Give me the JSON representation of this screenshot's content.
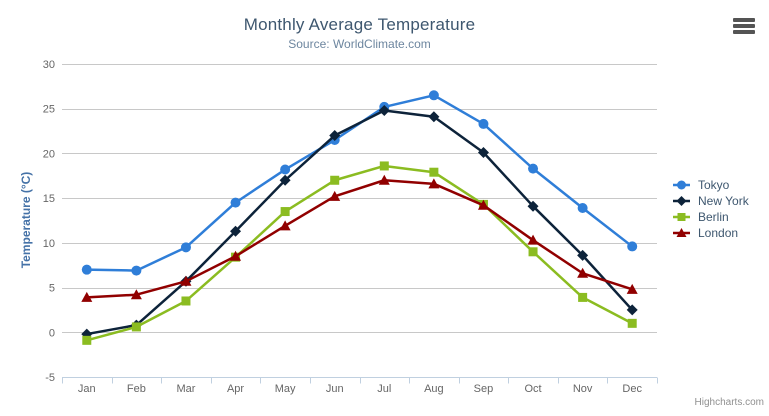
{
  "chart": {
    "title": "Monthly Average Temperature",
    "subtitle": "Source: WorldClimate.com",
    "y_axis_title": "Temperature (°C)",
    "credits": "Highcharts.com",
    "export_menu_icon": "hamburger-icon"
  },
  "style": {
    "grid_color": "#C8C8C8",
    "axis_line_color": "#C0D0E0",
    "axis_label_color": "#666666",
    "legend_text_color": "#3E576F",
    "title_color": "#3E576F",
    "subtitle_color": "#6D869F",
    "y_axis_title_color": "#4572A7",
    "background_color": "#FFFFFF"
  },
  "chart_data": {
    "type": "line",
    "title": "Monthly Average Temperature",
    "subtitle": "Source: WorldClimate.com",
    "xlabel": "",
    "ylabel": "Temperature (°C)",
    "ylim": [
      -5,
      30
    ],
    "y_ticks": [
      30,
      25,
      20,
      15,
      10,
      5,
      0,
      -5
    ],
    "grid": "horizontal",
    "legend_position": "right",
    "categories": [
      "Jan",
      "Feb",
      "Mar",
      "Apr",
      "May",
      "Jun",
      "Jul",
      "Aug",
      "Sep",
      "Oct",
      "Nov",
      "Dec"
    ],
    "series": [
      {
        "name": "Tokyo",
        "color": "#2F7ED8",
        "marker": "circle",
        "values": [
          7.0,
          6.9,
          9.5,
          14.5,
          18.2,
          21.5,
          25.2,
          26.5,
          23.3,
          18.3,
          13.9,
          9.6
        ]
      },
      {
        "name": "New York",
        "color": "#0D233A",
        "marker": "diamond",
        "values": [
          -0.2,
          0.8,
          5.7,
          11.3,
          17.0,
          22.0,
          24.8,
          24.1,
          20.1,
          14.1,
          8.6,
          2.5
        ]
      },
      {
        "name": "Berlin",
        "color": "#8BBC21",
        "marker": "square",
        "values": [
          -0.9,
          0.6,
          3.5,
          8.4,
          13.5,
          17.0,
          18.6,
          17.9,
          14.3,
          9.0,
          3.9,
          1.0
        ]
      },
      {
        "name": "London",
        "color": "#910000",
        "marker": "triangle",
        "values": [
          3.9,
          4.2,
          5.7,
          8.5,
          11.9,
          15.2,
          17.0,
          16.6,
          14.2,
          10.3,
          6.6,
          4.8
        ]
      }
    ]
  }
}
